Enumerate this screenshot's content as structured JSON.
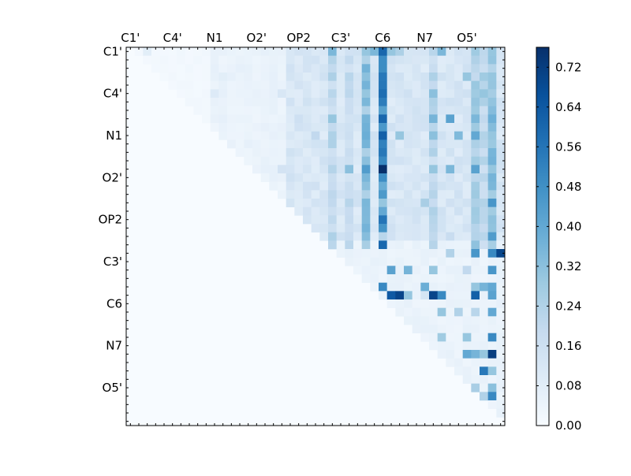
{
  "chart_data": {
    "type": "heatmap",
    "title": "",
    "xlabel": "",
    "ylabel": "",
    "colormap": "Blues",
    "colormap_min_color": "#f7fbff",
    "colormap_max_color": "#08306b",
    "grid": false,
    "n_cells": 45,
    "value_range": [
      0.0,
      0.76
    ],
    "tick_labels": [
      "C1'",
      "C4'",
      "N1",
      "O2'",
      "OP2",
      "C3'",
      "C6",
      "N7",
      "O5'"
    ],
    "tick_label_index": [
      0,
      5,
      10,
      15,
      20,
      25,
      30,
      35,
      40
    ],
    "colorbar": {
      "placement": "right",
      "ticks": [
        0.0,
        0.08,
        0.16,
        0.24,
        0.32,
        0.4,
        0.48,
        0.56,
        0.64,
        0.72
      ],
      "tick_labels": [
        "0.00",
        "0.08",
        "0.16",
        "0.24",
        "0.32",
        "0.40",
        "0.48",
        "0.56",
        "0.64",
        "0.72"
      ]
    },
    "values_note_rows": "upper-triangular 45x45 matrix; row i, column j (j > i); unlisted cells are 0",
    "rows": [
      {
        "i": 0,
        "cols": [
          [
            30,
            0.6
          ],
          [
            29,
            0.35
          ],
          [
            31,
            0.3
          ],
          [
            28,
            0.3
          ],
          [
            24,
            0.35
          ],
          [
            43,
            0.3
          ],
          [
            41,
            0.28
          ],
          [
            37,
            0.35
          ],
          [
            36,
            0.22
          ],
          [
            32,
            0.25
          ],
          [
            20,
            0.14
          ],
          [
            19,
            0.12
          ],
          [
            2,
            0.08
          ]
        ]
      },
      {
        "i": 3,
        "cols": [
          [
            30,
            0.55
          ],
          [
            28,
            0.32
          ],
          [
            40,
            0.3
          ],
          [
            42,
            0.28
          ],
          [
            24,
            0.25
          ],
          [
            26,
            0.22
          ],
          [
            43,
            0.3
          ],
          [
            20,
            0.12
          ],
          [
            11,
            0.08
          ]
        ]
      },
      {
        "i": 5,
        "cols": [
          [
            30,
            0.58
          ],
          [
            28,
            0.3
          ],
          [
            36,
            0.32
          ],
          [
            41,
            0.28
          ],
          [
            42,
            0.3
          ],
          [
            24,
            0.22
          ],
          [
            18,
            0.12
          ],
          [
            10,
            0.1
          ]
        ]
      },
      {
        "i": 8,
        "cols": [
          [
            30,
            0.6
          ],
          [
            28,
            0.36
          ],
          [
            24,
            0.3
          ],
          [
            36,
            0.36
          ],
          [
            38,
            0.42
          ],
          [
            41,
            0.35
          ],
          [
            42,
            0.2
          ],
          [
            20,
            0.16
          ],
          [
            19,
            0.1
          ]
        ]
      },
      {
        "i": 10,
        "cols": [
          [
            30,
            0.62
          ],
          [
            28,
            0.38
          ],
          [
            32,
            0.3
          ],
          [
            36,
            0.32
          ],
          [
            39,
            0.34
          ],
          [
            41,
            0.4
          ],
          [
            43,
            0.3
          ],
          [
            22,
            0.2
          ]
        ]
      },
      {
        "i": 14,
        "cols": [
          [
            30,
            0.76
          ],
          [
            28,
            0.44
          ],
          [
            26,
            0.32
          ],
          [
            36,
            0.3
          ],
          [
            38,
            0.35
          ],
          [
            41,
            0.42
          ],
          [
            43,
            0.3
          ],
          [
            18,
            0.14
          ]
        ]
      },
      {
        "i": 18,
        "cols": [
          [
            28,
            0.35
          ],
          [
            30,
            0.3
          ],
          [
            43,
            0.46
          ],
          [
            41,
            0.25
          ],
          [
            35,
            0.26
          ],
          [
            24,
            0.2
          ]
        ]
      },
      {
        "i": 22,
        "cols": [
          [
            30,
            0.22
          ],
          [
            43,
            0.44
          ],
          [
            42,
            0.22
          ],
          [
            38,
            0.18
          ],
          [
            26,
            0.18
          ]
        ]
      },
      {
        "i": 24,
        "cols": [
          [
            44,
            0.7
          ],
          [
            43,
            0.5
          ],
          [
            38,
            0.24
          ],
          [
            41,
            0.46
          ]
        ]
      },
      {
        "i": 26,
        "cols": [
          [
            31,
            0.42
          ],
          [
            33,
            0.36
          ],
          [
            36,
            0.3
          ],
          [
            43,
            0.46
          ],
          [
            40,
            0.2
          ]
        ]
      },
      {
        "i": 28,
        "cols": [
          [
            30,
            0.5
          ],
          [
            35,
            0.38
          ],
          [
            41,
            0.3
          ],
          [
            42,
            0.36
          ],
          [
            43,
            0.4
          ]
        ]
      },
      {
        "i": 29,
        "cols": [
          [
            31,
            0.64
          ],
          [
            32,
            0.7
          ],
          [
            33,
            0.3
          ],
          [
            35,
            0.13
          ],
          [
            36,
            0.7
          ],
          [
            37,
            0.5
          ],
          [
            41,
            0.62
          ],
          [
            43,
            0.42
          ]
        ]
      },
      {
        "i": 31,
        "cols": [
          [
            37,
            0.3
          ],
          [
            39,
            0.24
          ],
          [
            41,
            0.22
          ],
          [
            43,
            0.4
          ]
        ]
      },
      {
        "i": 34,
        "cols": [
          [
            37,
            0.28
          ],
          [
            40,
            0.3
          ],
          [
            43,
            0.5
          ]
        ]
      },
      {
        "i": 36,
        "cols": [
          [
            43,
            0.72
          ],
          [
            40,
            0.4
          ],
          [
            41,
            0.36
          ],
          [
            42,
            0.3
          ]
        ]
      },
      {
        "i": 38,
        "cols": [
          [
            42,
            0.55
          ],
          [
            43,
            0.3
          ]
        ]
      },
      {
        "i": 40,
        "cols": [
          [
            41,
            0.26
          ],
          [
            43,
            0.32
          ]
        ]
      },
      {
        "i": 41,
        "cols": [
          [
            42,
            0.24
          ],
          [
            43,
            0.5
          ]
        ]
      }
    ]
  }
}
